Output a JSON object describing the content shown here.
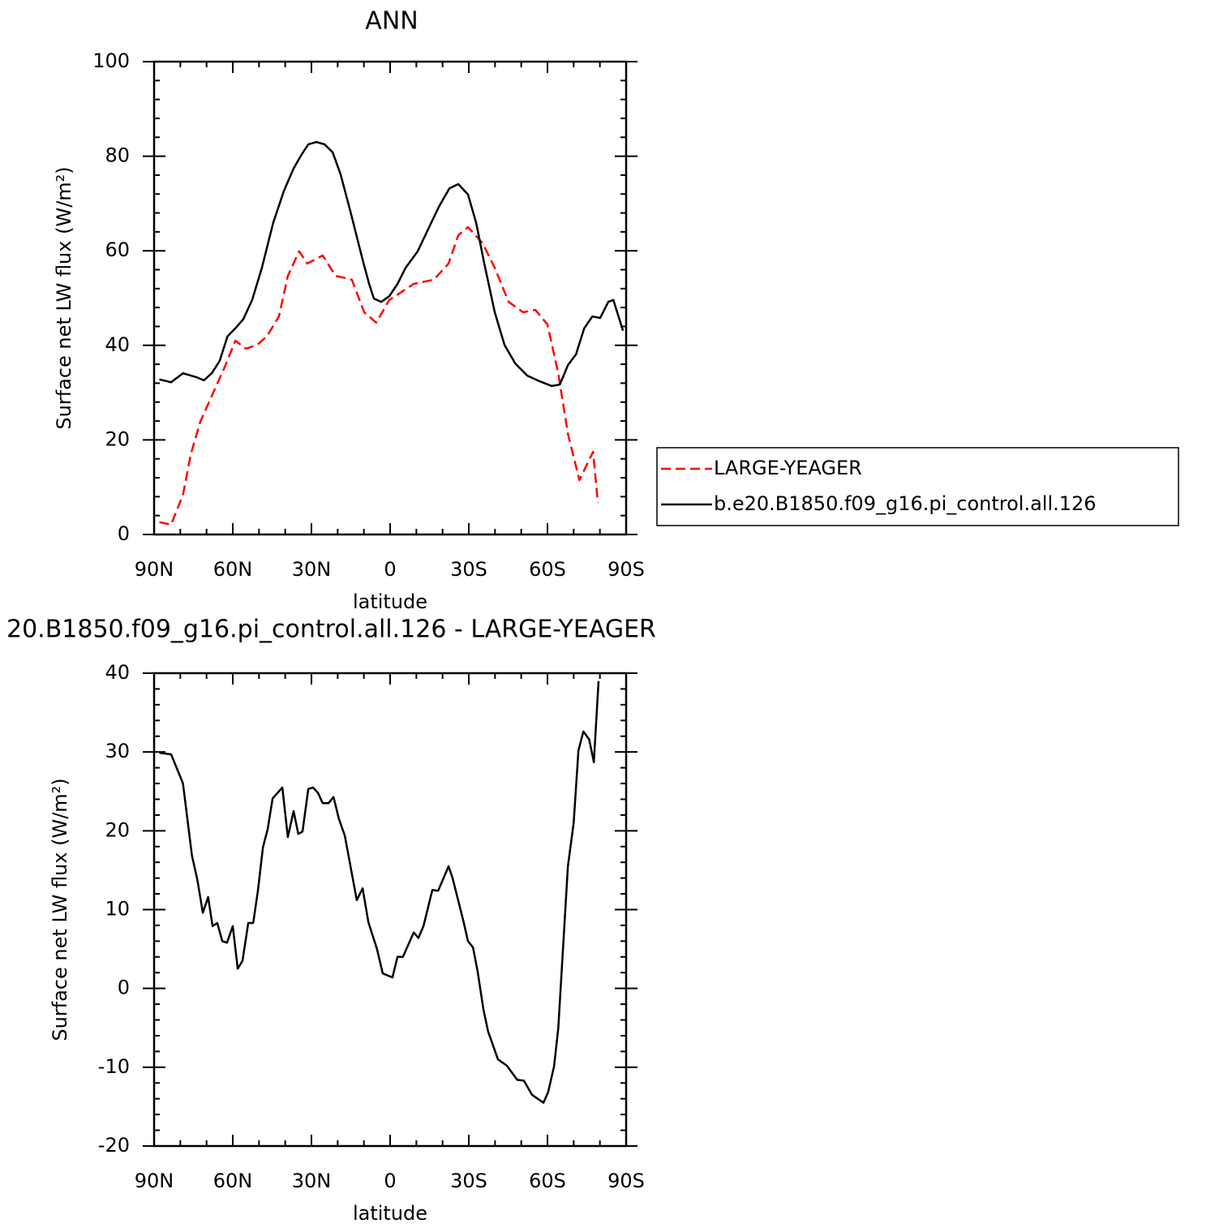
{
  "chart_data": [
    {
      "type": "line",
      "title": "ANN",
      "xlabel": "latitude",
      "ylabel": "Surface net LW flux (W/m²)",
      "xlim": [
        90,
        -90
      ],
      "xticks": [
        {
          "value": 90,
          "label": "90N"
        },
        {
          "value": 60,
          "label": "60N"
        },
        {
          "value": 30,
          "label": "30N"
        },
        0,
        {
          "value": -30,
          "label": "30S"
        },
        {
          "value": -60,
          "label": "60S"
        },
        {
          "value": -90,
          "label": "90S"
        }
      ],
      "ylim": [
        0,
        100
      ],
      "yticks": [
        0,
        20,
        40,
        60,
        80,
        100
      ],
      "legend": "right",
      "series": [
        {
          "name": "LARGE-YEAGER",
          "color": "#ff0000",
          "dash": true,
          "x": [
            88,
            83.5,
            79,
            76,
            72.4,
            68,
            63,
            59,
            55,
            50.7,
            47,
            42.4,
            39,
            34.7,
            31.6,
            25.7,
            20.8,
            14.6,
            9.9,
            5.3,
            0.3,
            -4.4,
            -9,
            -16.7,
            -22.3,
            -26,
            -29.7,
            -35.3,
            -39.9,
            -45.2,
            -50.7,
            -55.4,
            -60,
            -64.1,
            -67.8,
            -72.2,
            -75.5,
            -77.4,
            -79.2
          ],
          "values": [
            2.6,
            2.1,
            8.4,
            17,
            23.8,
            29.3,
            35.5,
            41,
            39.3,
            40.1,
            41.9,
            46.1,
            54.7,
            59.9,
            57.3,
            59,
            54.7,
            53.9,
            47,
            44.8,
            49.6,
            51.3,
            53,
            53.9,
            57.3,
            63.3,
            65,
            61.6,
            56.4,
            49.2,
            47,
            47.5,
            44.4,
            34.1,
            21.3,
            11.5,
            15.3,
            17.5,
            6.7
          ]
        },
        {
          "name": "b.e20.B1850.f09_g16.pi_control.all.126",
          "color": "#000000",
          "dash": false,
          "x": [
            88,
            83.5,
            79,
            74,
            71,
            68,
            65,
            62,
            59,
            56,
            52.6,
            48.9,
            44.6,
            40.5,
            36.8,
            33.7,
            31.2,
            28.1,
            25,
            21.9,
            18.9,
            15.2,
            10.5,
            8,
            6.2,
            3.4,
            0.3,
            -2.8,
            -5.9,
            -10.5,
            -14.2,
            -18.6,
            -22.6,
            -26,
            -29.7,
            -32.8,
            -35.9,
            -39.9,
            -43.6,
            -47.7,
            -52.3,
            -57,
            -61.6,
            -64.7,
            -67.8,
            -70.9,
            -74,
            -77.1,
            -80.1,
            -83.2,
            -85.1,
            -88.8
          ],
          "values": [
            32.8,
            32.2,
            34.1,
            33.3,
            32.6,
            34.1,
            36.7,
            41.9,
            43.6,
            45.5,
            49.6,
            56.4,
            65.9,
            72.7,
            77.4,
            80.4,
            82.5,
            83,
            82.5,
            80.8,
            76.2,
            68.4,
            58.1,
            53,
            49.9,
            49.2,
            50.4,
            53,
            56.4,
            59.9,
            64.2,
            69.3,
            73.2,
            74.1,
            71.9,
            65.9,
            57.3,
            47,
            40.1,
            36.2,
            33.6,
            32.4,
            31.4,
            31.7,
            35.8,
            38.1,
            43.6,
            46.1,
            45.8,
            49.2,
            49.6,
            43.1
          ]
        }
      ]
    },
    {
      "type": "line",
      "title": "20.B1850.f09_g16.pi_control.all.126 - LARGE-YEAGER",
      "xlabel": "latitude",
      "ylabel": "Surface net LW flux (W/m²)",
      "xlim": [
        90,
        -90
      ],
      "xticks": [
        {
          "value": 90,
          "label": "90N"
        },
        {
          "value": 60,
          "label": "60N"
        },
        {
          "value": 30,
          "label": "30N"
        },
        0,
        {
          "value": -30,
          "label": "30S"
        },
        {
          "value": -60,
          "label": "60S"
        },
        {
          "value": -90,
          "label": "90S"
        }
      ],
      "ylim": [
        -20,
        40
      ],
      "yticks": [
        -20,
        -10,
        0,
        10,
        20,
        30,
        40
      ],
      "series": [
        {
          "color": "#000000",
          "dash": false,
          "x": [
            88,
            83.5,
            80.7,
            79,
            75.6,
            73.5,
            71.4,
            69.4,
            67.7,
            65.9,
            64,
            62.2,
            60,
            58.1,
            56.3,
            54.1,
            52.2,
            50.4,
            48.5,
            46.7,
            44.8,
            41.1,
            39,
            36.8,
            35,
            33.4,
            31.2,
            29.4,
            27.5,
            25.7,
            23.5,
            21.6,
            19.5,
            17.3,
            12.7,
            10.5,
            8.3,
            5,
            2.8,
            -0.9,
            -2.8,
            -4.9,
            -9,
            -10.8,
            -12.7,
            -16.1,
            -18.3,
            -22.3,
            -23.8,
            -27.9,
            -29.7,
            -31.6,
            -33.4,
            -35.6,
            -37.4,
            -41.1,
            -44.5,
            -48.5,
            -51,
            -54.1,
            -58.5,
            -60.3,
            -62.5,
            -64.1,
            -67.8,
            -70,
            -71.8,
            -73.7,
            -75.9,
            -77.7,
            -79.5
          ],
          "values": [
            29.9,
            29.7,
            27.4,
            26,
            16.9,
            13.8,
            9.6,
            11.6,
            7.9,
            8.3,
            6,
            5.8,
            7.9,
            2.5,
            3.5,
            8.3,
            8.3,
            12.4,
            17.9,
            20.2,
            24.1,
            25.5,
            19.2,
            22.5,
            19.6,
            19.9,
            25.3,
            25.5,
            24.8,
            23.5,
            23.5,
            24.3,
            21.5,
            19.4,
            11.2,
            12.7,
            8.4,
            5,
            1.9,
            1.4,
            4,
            4,
            7.1,
            6.4,
            7.9,
            12.5,
            12.4,
            15.5,
            14,
            8.6,
            6,
            5.2,
            2.1,
            -2.7,
            -5.5,
            -9,
            -9.8,
            -11.6,
            -11.7,
            -13.5,
            -14.5,
            -13.1,
            -9.9,
            -5.1,
            15.5,
            21,
            30.2,
            32.6,
            31.6,
            28.7,
            39
          ]
        }
      ]
    }
  ]
}
